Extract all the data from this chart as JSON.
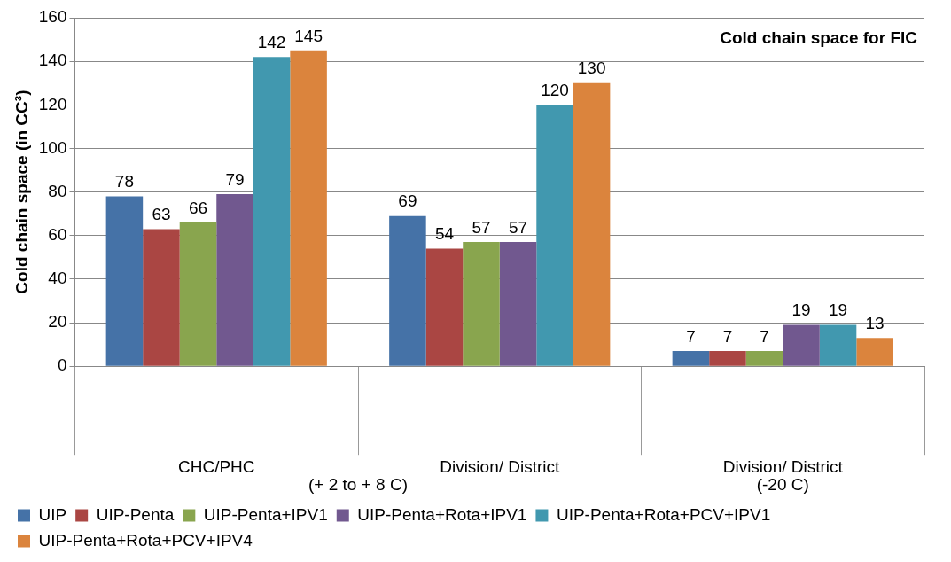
{
  "chart_data": {
    "type": "bar",
    "title": "Cold chain space for FIC",
    "ylabel": "Cold chain space (in CC³)",
    "categories": [
      "CHC/PHC",
      "Division/ District",
      "Division/ District"
    ],
    "series": [
      {
        "name": "UIP",
        "color": "#4572a7",
        "values": [
          78,
          69,
          7
        ]
      },
      {
        "name": "UIP-Penta",
        "color": "#aa4643",
        "values": [
          63,
          54,
          7
        ]
      },
      {
        "name": "UIP-Penta+IPV1",
        "color": "#89a54e",
        "values": [
          66,
          57,
          7
        ]
      },
      {
        "name": "UIP-Penta+Rota+IPV1",
        "color": "#71588f",
        "values": [
          79,
          57,
          19
        ]
      },
      {
        "name": "UIP-Penta+Rota+PCV+IPV1",
        "color": "#4198af",
        "values": [
          142,
          120,
          19
        ]
      },
      {
        "name": "UIP-Penta+Rota+PCV+IPV4",
        "color": "#db843d",
        "values": [
          145,
          130,
          13
        ]
      }
    ],
    "annotations": [
      "(+ 2 to + 8 C)",
      "(-20 C)"
    ],
    "ylim": [
      0,
      160
    ],
    "yticks": [
      0,
      20,
      40,
      60,
      80,
      100,
      120,
      140,
      160
    ],
    "grid": "y",
    "legend": "bottom",
    "data_labels": true
  }
}
